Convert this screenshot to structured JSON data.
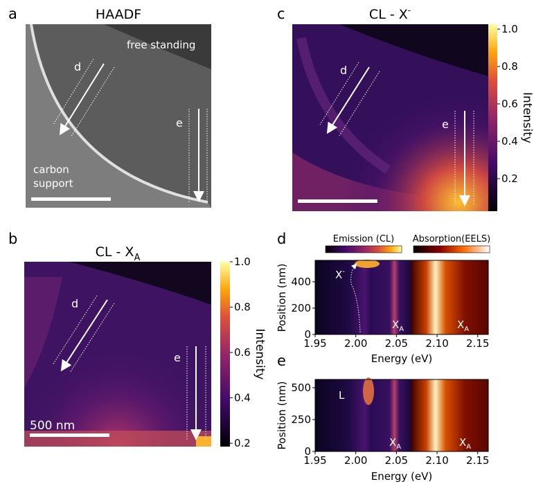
{
  "figure": {
    "a": {
      "letter": "a",
      "title": "HAADF",
      "labels": {
        "region1": "free standing",
        "region2": [
          "carbon",
          "support"
        ],
        "d": "d",
        "e": "e"
      }
    },
    "b": {
      "letter": "b",
      "title": "CL - X",
      "title_sub": "A",
      "labels": {
        "d": "d",
        "e": "e",
        "scale": "500 nm"
      },
      "colorbar": {
        "label": "Intensity",
        "lim": [
          0.185,
          1.0
        ],
        "ticks": [
          0.2,
          0.4,
          0.6,
          0.8,
          {
            "value": 1,
            "label": "1.0"
          }
        ]
      }
    },
    "c": {
      "letter": "c",
      "title": "CL - X",
      "title_sup": "-",
      "labels": {
        "d": "d",
        "e": "e"
      },
      "colorbar": {
        "label": "Intensity",
        "lim": [
          0.026,
          1.026
        ],
        "ticks": [
          0.2,
          0.4,
          0.6,
          0.8,
          {
            "value": 1,
            "label": "1.0"
          }
        ]
      }
    },
    "d": {
      "letter": "d",
      "cbar_labels": [
        "Emission (CL)",
        "Absorption(EELS)"
      ],
      "xlabel": "Energy (eV)",
      "ylabel": "Position (nm)",
      "xlim": [
        1.95,
        2.163
      ],
      "xticks": [
        1.95,
        {
          "value": 2,
          "label": "2.00"
        },
        2.05,
        {
          "value": 2.1,
          "label": "2.10"
        },
        2.15
      ],
      "ylim": [
        0,
        563
      ],
      "yticks": [
        0,
        200,
        400
      ],
      "annotations": [
        {
          "text": "X",
          "sup": "-"
        },
        {
          "text": "X",
          "sub": "A"
        },
        {
          "text": "X",
          "sub": "A"
        }
      ]
    },
    "e": {
      "letter": "e",
      "xlabel": "Energy (eV)",
      "ylabel": "Position (nm)",
      "xlim": [
        1.95,
        2.163
      ],
      "xticks": [
        1.95,
        {
          "value": 2,
          "label": "2.00"
        },
        2.05,
        {
          "value": 2.1,
          "label": "2.10"
        },
        2.15
      ],
      "ylim": [
        0,
        565
      ],
      "yticks": [
        0,
        250,
        500
      ],
      "annotations": [
        {
          "text": "L"
        },
        {
          "text": "X",
          "sub": "A"
        },
        {
          "text": "X",
          "sub": "A"
        }
      ]
    }
  }
}
